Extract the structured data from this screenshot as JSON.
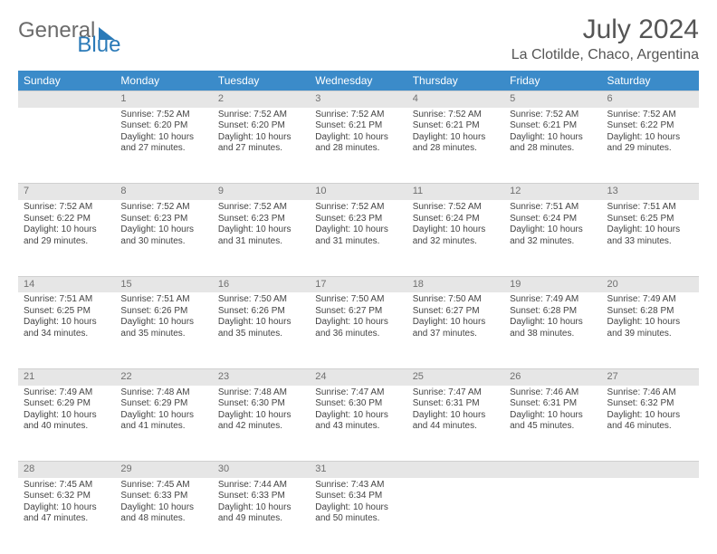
{
  "brand": {
    "part1": "General",
    "part2": "Blue"
  },
  "title": "July 2024",
  "location": "La Clotilde, Chaco, Argentina",
  "colors": {
    "header_bg": "#3b8bc9",
    "header_text": "#ffffff",
    "daynum_bg": "#e6e6e6",
    "daynum_text": "#707070",
    "body_text": "#444444",
    "page_bg": "#ffffff"
  },
  "weekdays": [
    "Sunday",
    "Monday",
    "Tuesday",
    "Wednesday",
    "Thursday",
    "Friday",
    "Saturday"
  ],
  "weeks": [
    {
      "nums": [
        "",
        "1",
        "2",
        "3",
        "4",
        "5",
        "6"
      ],
      "cells": [
        null,
        {
          "sunrise": "Sunrise: 7:52 AM",
          "sunset": "Sunset: 6:20 PM",
          "day1": "Daylight: 10 hours",
          "day2": "and 27 minutes."
        },
        {
          "sunrise": "Sunrise: 7:52 AM",
          "sunset": "Sunset: 6:20 PM",
          "day1": "Daylight: 10 hours",
          "day2": "and 27 minutes."
        },
        {
          "sunrise": "Sunrise: 7:52 AM",
          "sunset": "Sunset: 6:21 PM",
          "day1": "Daylight: 10 hours",
          "day2": "and 28 minutes."
        },
        {
          "sunrise": "Sunrise: 7:52 AM",
          "sunset": "Sunset: 6:21 PM",
          "day1": "Daylight: 10 hours",
          "day2": "and 28 minutes."
        },
        {
          "sunrise": "Sunrise: 7:52 AM",
          "sunset": "Sunset: 6:21 PM",
          "day1": "Daylight: 10 hours",
          "day2": "and 28 minutes."
        },
        {
          "sunrise": "Sunrise: 7:52 AM",
          "sunset": "Sunset: 6:22 PM",
          "day1": "Daylight: 10 hours",
          "day2": "and 29 minutes."
        }
      ]
    },
    {
      "nums": [
        "7",
        "8",
        "9",
        "10",
        "11",
        "12",
        "13"
      ],
      "cells": [
        {
          "sunrise": "Sunrise: 7:52 AM",
          "sunset": "Sunset: 6:22 PM",
          "day1": "Daylight: 10 hours",
          "day2": "and 29 minutes."
        },
        {
          "sunrise": "Sunrise: 7:52 AM",
          "sunset": "Sunset: 6:23 PM",
          "day1": "Daylight: 10 hours",
          "day2": "and 30 minutes."
        },
        {
          "sunrise": "Sunrise: 7:52 AM",
          "sunset": "Sunset: 6:23 PM",
          "day1": "Daylight: 10 hours",
          "day2": "and 31 minutes."
        },
        {
          "sunrise": "Sunrise: 7:52 AM",
          "sunset": "Sunset: 6:23 PM",
          "day1": "Daylight: 10 hours",
          "day2": "and 31 minutes."
        },
        {
          "sunrise": "Sunrise: 7:52 AM",
          "sunset": "Sunset: 6:24 PM",
          "day1": "Daylight: 10 hours",
          "day2": "and 32 minutes."
        },
        {
          "sunrise": "Sunrise: 7:51 AM",
          "sunset": "Sunset: 6:24 PM",
          "day1": "Daylight: 10 hours",
          "day2": "and 32 minutes."
        },
        {
          "sunrise": "Sunrise: 7:51 AM",
          "sunset": "Sunset: 6:25 PM",
          "day1": "Daylight: 10 hours",
          "day2": "and 33 minutes."
        }
      ]
    },
    {
      "nums": [
        "14",
        "15",
        "16",
        "17",
        "18",
        "19",
        "20"
      ],
      "cells": [
        {
          "sunrise": "Sunrise: 7:51 AM",
          "sunset": "Sunset: 6:25 PM",
          "day1": "Daylight: 10 hours",
          "day2": "and 34 minutes."
        },
        {
          "sunrise": "Sunrise: 7:51 AM",
          "sunset": "Sunset: 6:26 PM",
          "day1": "Daylight: 10 hours",
          "day2": "and 35 minutes."
        },
        {
          "sunrise": "Sunrise: 7:50 AM",
          "sunset": "Sunset: 6:26 PM",
          "day1": "Daylight: 10 hours",
          "day2": "and 35 minutes."
        },
        {
          "sunrise": "Sunrise: 7:50 AM",
          "sunset": "Sunset: 6:27 PM",
          "day1": "Daylight: 10 hours",
          "day2": "and 36 minutes."
        },
        {
          "sunrise": "Sunrise: 7:50 AM",
          "sunset": "Sunset: 6:27 PM",
          "day1": "Daylight: 10 hours",
          "day2": "and 37 minutes."
        },
        {
          "sunrise": "Sunrise: 7:49 AM",
          "sunset": "Sunset: 6:28 PM",
          "day1": "Daylight: 10 hours",
          "day2": "and 38 minutes."
        },
        {
          "sunrise": "Sunrise: 7:49 AM",
          "sunset": "Sunset: 6:28 PM",
          "day1": "Daylight: 10 hours",
          "day2": "and 39 minutes."
        }
      ]
    },
    {
      "nums": [
        "21",
        "22",
        "23",
        "24",
        "25",
        "26",
        "27"
      ],
      "cells": [
        {
          "sunrise": "Sunrise: 7:49 AM",
          "sunset": "Sunset: 6:29 PM",
          "day1": "Daylight: 10 hours",
          "day2": "and 40 minutes."
        },
        {
          "sunrise": "Sunrise: 7:48 AM",
          "sunset": "Sunset: 6:29 PM",
          "day1": "Daylight: 10 hours",
          "day2": "and 41 minutes."
        },
        {
          "sunrise": "Sunrise: 7:48 AM",
          "sunset": "Sunset: 6:30 PM",
          "day1": "Daylight: 10 hours",
          "day2": "and 42 minutes."
        },
        {
          "sunrise": "Sunrise: 7:47 AM",
          "sunset": "Sunset: 6:30 PM",
          "day1": "Daylight: 10 hours",
          "day2": "and 43 minutes."
        },
        {
          "sunrise": "Sunrise: 7:47 AM",
          "sunset": "Sunset: 6:31 PM",
          "day1": "Daylight: 10 hours",
          "day2": "and 44 minutes."
        },
        {
          "sunrise": "Sunrise: 7:46 AM",
          "sunset": "Sunset: 6:31 PM",
          "day1": "Daylight: 10 hours",
          "day2": "and 45 minutes."
        },
        {
          "sunrise": "Sunrise: 7:46 AM",
          "sunset": "Sunset: 6:32 PM",
          "day1": "Daylight: 10 hours",
          "day2": "and 46 minutes."
        }
      ]
    },
    {
      "nums": [
        "28",
        "29",
        "30",
        "31",
        "",
        "",
        ""
      ],
      "cells": [
        {
          "sunrise": "Sunrise: 7:45 AM",
          "sunset": "Sunset: 6:32 PM",
          "day1": "Daylight: 10 hours",
          "day2": "and 47 minutes."
        },
        {
          "sunrise": "Sunrise: 7:45 AM",
          "sunset": "Sunset: 6:33 PM",
          "day1": "Daylight: 10 hours",
          "day2": "and 48 minutes."
        },
        {
          "sunrise": "Sunrise: 7:44 AM",
          "sunset": "Sunset: 6:33 PM",
          "day1": "Daylight: 10 hours",
          "day2": "and 49 minutes."
        },
        {
          "sunrise": "Sunrise: 7:43 AM",
          "sunset": "Sunset: 6:34 PM",
          "day1": "Daylight: 10 hours",
          "day2": "and 50 minutes."
        },
        null,
        null,
        null
      ]
    }
  ]
}
